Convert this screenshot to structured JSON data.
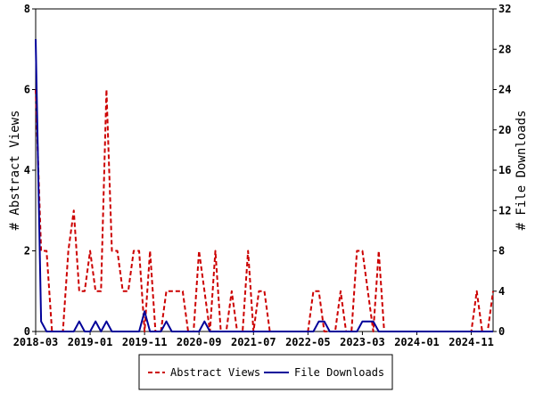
{
  "chart_data": {
    "type": "line",
    "y_left_label": "# Abstract Views",
    "y_right_label": "# File Downloads",
    "y_left_ticks": [
      "0",
      "2",
      "4",
      "6",
      "8"
    ],
    "y_right_ticks": [
      "0",
      "4",
      "8",
      "12",
      "16",
      "20",
      "24",
      "28",
      "32"
    ],
    "ylim_left": [
      0,
      8
    ],
    "ylim_right": [
      0,
      32
    ],
    "x_ticks": [
      "2018-03",
      "2019-01",
      "2019-11",
      "2020-09",
      "2021-07",
      "2022-05",
      "2023-03",
      "2024-01",
      "2024-11"
    ],
    "x_months": [
      "2018-03",
      "2018-04",
      "2018-05",
      "2018-06",
      "2018-07",
      "2018-08",
      "2018-09",
      "2018-10",
      "2018-11",
      "2018-12",
      "2019-01",
      "2019-02",
      "2019-03",
      "2019-04",
      "2019-05",
      "2019-06",
      "2019-07",
      "2019-08",
      "2019-09",
      "2019-10",
      "2019-11",
      "2019-12",
      "2020-01",
      "2020-02",
      "2020-03",
      "2020-04",
      "2020-05",
      "2020-06",
      "2020-07",
      "2020-08",
      "2020-09",
      "2020-10",
      "2020-11",
      "2020-12",
      "2021-01",
      "2021-02",
      "2021-03",
      "2021-04",
      "2021-05",
      "2021-06",
      "2021-07",
      "2021-08",
      "2021-09",
      "2021-10",
      "2021-11",
      "2021-12",
      "2022-01",
      "2022-02",
      "2022-03",
      "2022-04",
      "2022-05",
      "2022-06",
      "2022-07",
      "2022-08",
      "2022-09",
      "2022-10",
      "2022-11",
      "2022-12",
      "2023-01",
      "2023-02",
      "2023-03",
      "2023-04",
      "2023-05",
      "2023-06",
      "2023-07",
      "2023-08",
      "2023-09",
      "2023-10",
      "2023-11",
      "2023-12",
      "2024-01",
      "2024-02",
      "2024-03",
      "2024-04",
      "2024-05",
      "2024-06",
      "2024-07",
      "2024-08",
      "2024-09",
      "2024-10",
      "2024-11",
      "2024-12",
      "2025-01",
      "2025-02",
      "2025-03"
    ],
    "series": [
      {
        "name": "Abstract Views",
        "color": "#cc0000",
        "dash": "dashed",
        "axis": "left",
        "values": [
          6,
          2,
          2,
          0,
          0,
          0,
          2,
          3,
          1,
          1,
          2,
          1,
          1,
          6,
          2,
          2,
          1,
          1,
          2,
          2,
          0,
          2,
          0,
          0,
          1,
          1,
          1,
          1,
          0,
          0,
          2,
          1,
          0,
          2,
          0,
          0,
          1,
          0,
          0,
          2,
          0,
          1,
          1,
          0,
          0,
          0,
          0,
          0,
          0,
          0,
          0,
          1,
          1,
          0,
          0,
          0,
          1,
          0,
          0,
          2,
          2,
          1,
          0,
          2,
          0,
          0,
          0,
          0,
          0,
          0,
          0,
          0,
          0,
          0,
          0,
          0,
          0,
          0,
          0,
          0,
          0,
          1,
          0,
          0,
          1
        ]
      },
      {
        "name": "File Downloads",
        "color": "#000099",
        "dash": "solid",
        "axis": "right",
        "values": [
          29,
          1,
          0,
          0,
          0,
          0,
          0,
          0,
          1,
          0,
          0,
          1,
          0,
          1,
          0,
          0,
          0,
          0,
          0,
          0,
          2,
          0,
          0,
          0,
          1,
          0,
          0,
          0,
          0,
          0,
          0,
          1,
          0,
          0,
          0,
          0,
          0,
          0,
          0,
          0,
          0,
          0,
          0,
          0,
          0,
          0,
          0,
          0,
          0,
          0,
          0,
          0,
          1,
          1,
          0,
          0,
          0,
          0,
          0,
          0,
          1,
          1,
          1,
          0,
          0,
          0,
          0,
          0,
          0,
          0,
          0,
          0,
          0,
          0,
          0,
          0,
          0,
          0,
          0,
          0,
          0,
          0,
          0,
          0,
          0
        ]
      }
    ],
    "legend": {
      "position": "bottom"
    },
    "grid": false
  }
}
